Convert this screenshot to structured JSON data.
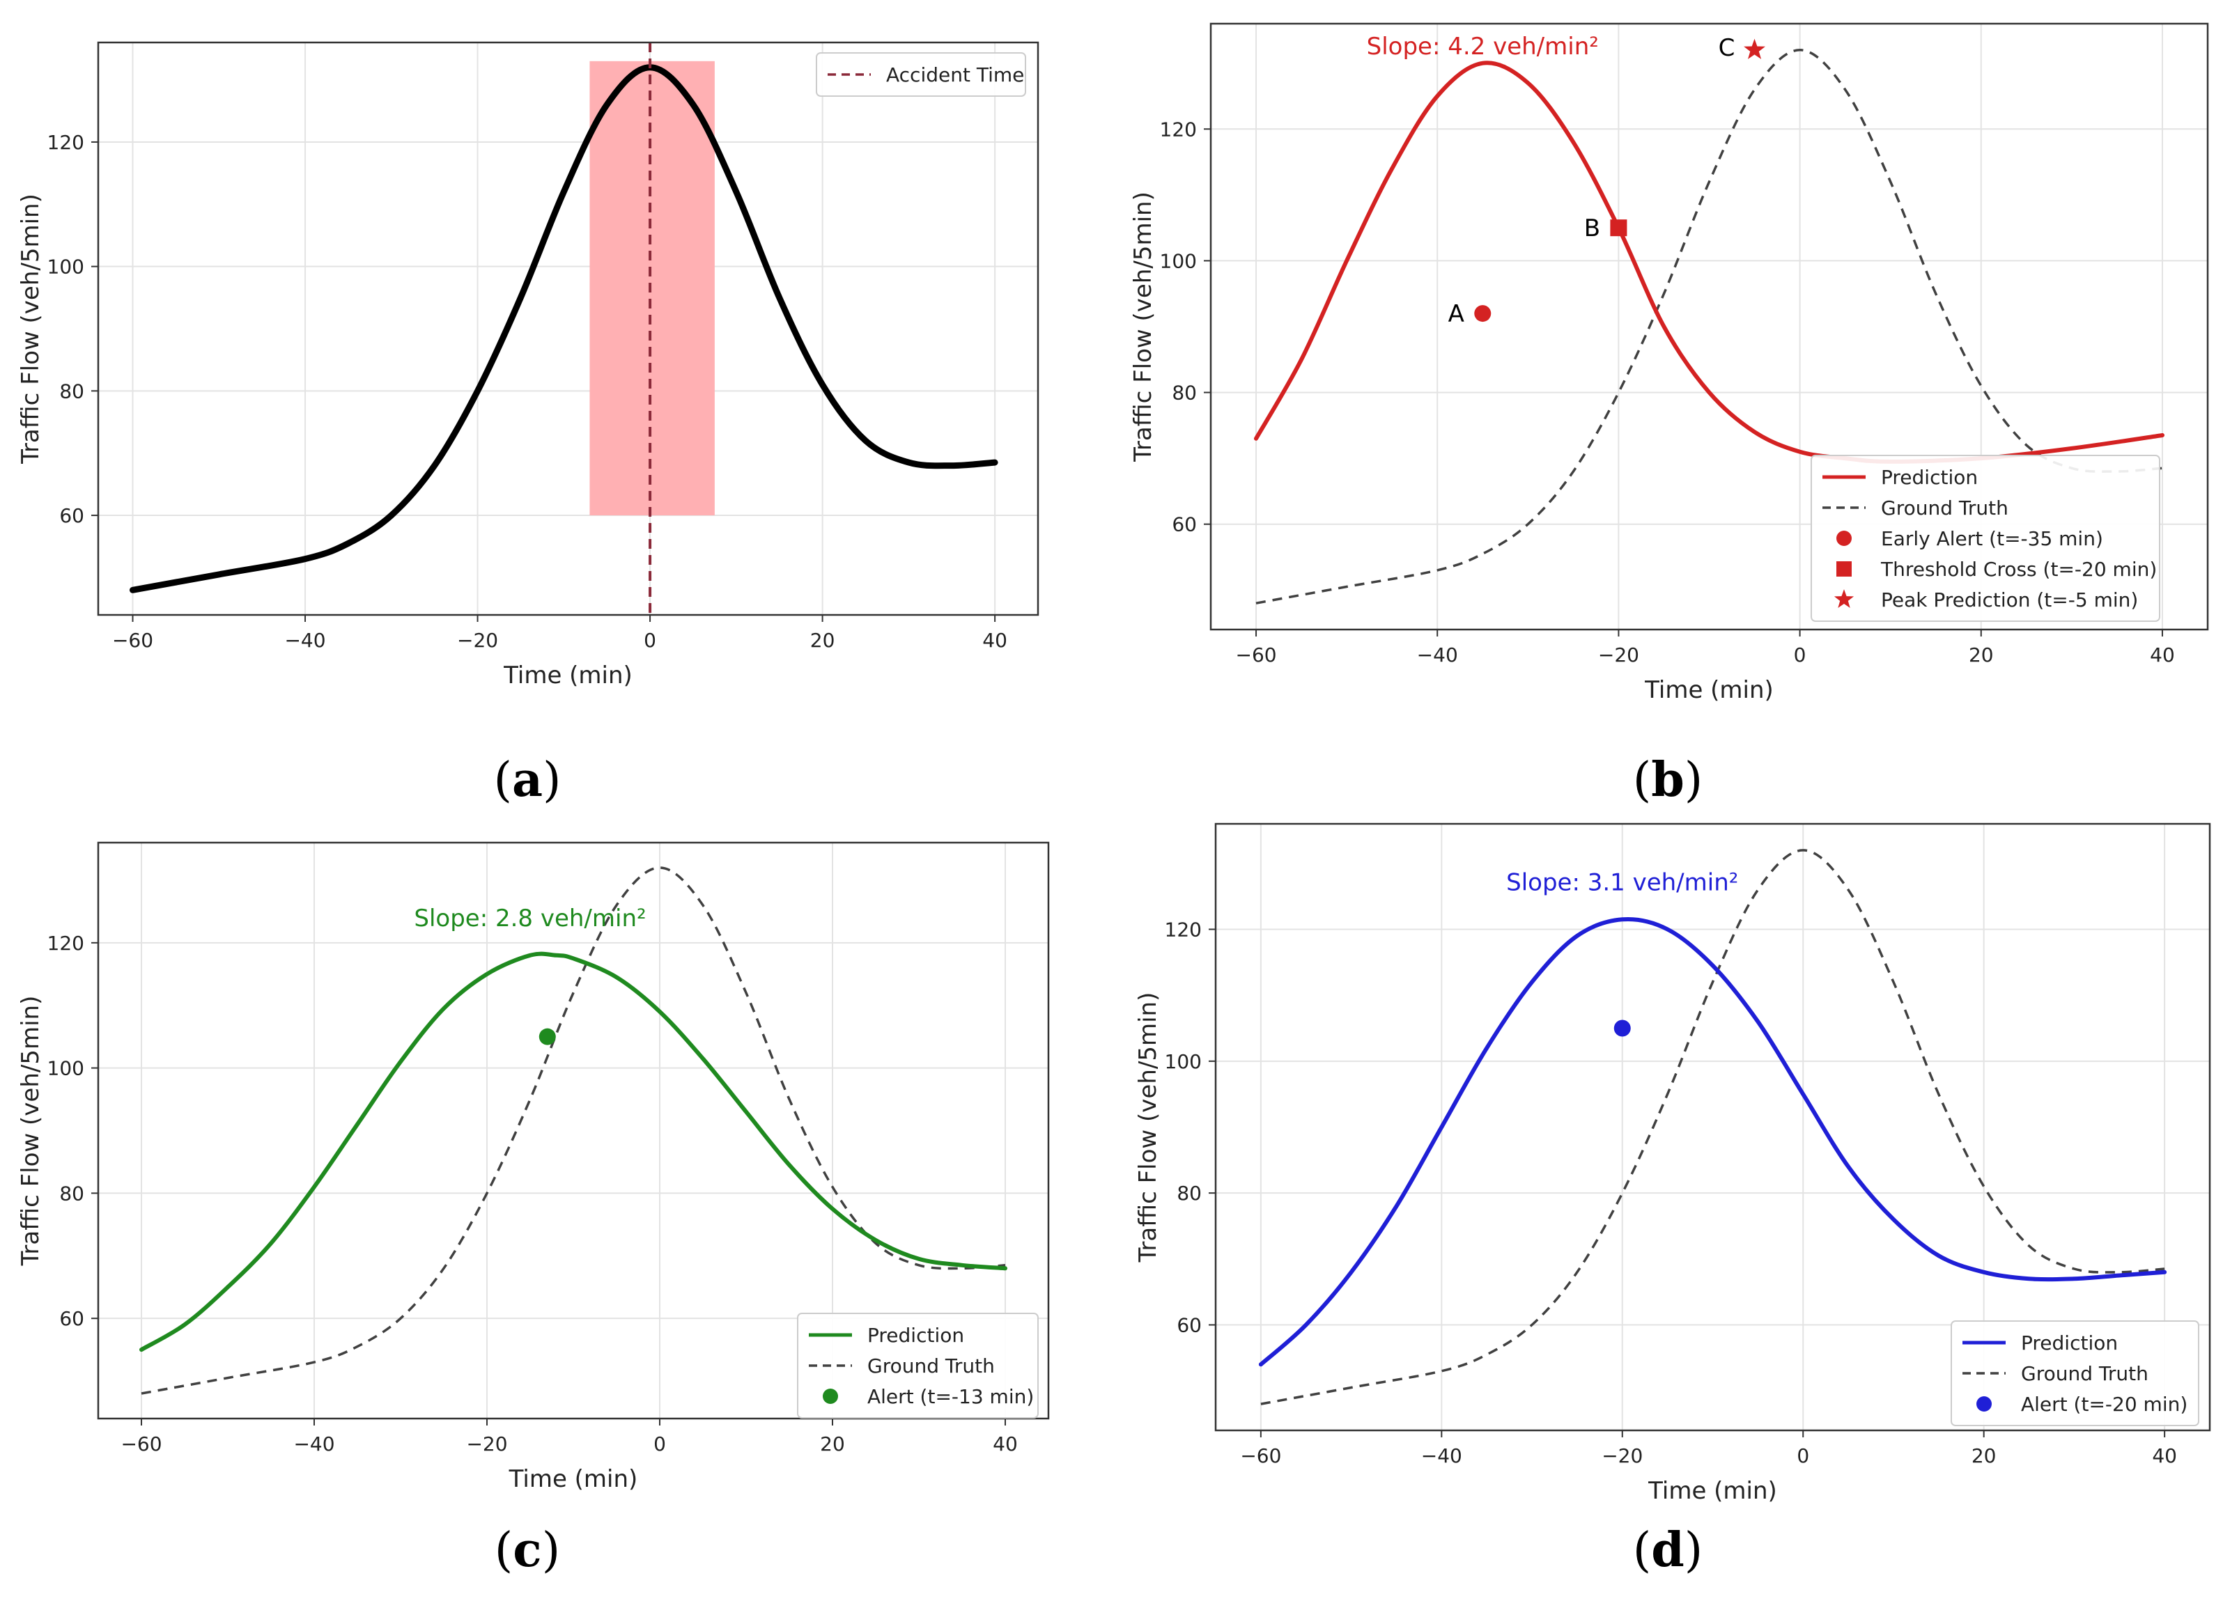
{
  "panel_labels": [
    "a",
    "b",
    "c",
    "d"
  ],
  "colors": {
    "black": "#000000",
    "red": "#d42222",
    "green": "#1f8a1f",
    "blue": "#1f1fd6",
    "gray_dashed": "#404040",
    "accident_line": "#8b2a3a",
    "shade": "#ffb0b3"
  },
  "chart_data": [
    {
      "panel": "a",
      "type": "line",
      "xlabel": "Time (min)",
      "ylabel": "Traffic Flow (veh/5min)",
      "xlim": [
        -64,
        45
      ],
      "ylim": [
        44,
        136
      ],
      "xticks": [
        -60,
        -40,
        -20,
        0,
        20,
        40
      ],
      "yticks": [
        60,
        80,
        100,
        120
      ],
      "grid": true,
      "legend_placement": "top-right",
      "series": [
        {
          "name": "",
          "color": "#000000",
          "style": "solid",
          "x": [
            -60,
            -50,
            -40,
            -35,
            -30,
            -25,
            -20,
            -15,
            -10,
            -5,
            0,
            5,
            10,
            15,
            20,
            25,
            30,
            35,
            40
          ],
          "y": [
            48,
            50.5,
            53,
            55.5,
            60,
            68,
            80,
            95,
            112,
            126,
            132,
            126,
            112,
            95,
            81,
            72,
            68.5,
            68,
            68.5
          ]
        }
      ],
      "shaded_region": {
        "x": [
          -7,
          7.5
        ],
        "y": [
          60,
          133
        ]
      },
      "vline": {
        "x": 0,
        "label": "Accident Time",
        "style": "dashed"
      }
    },
    {
      "panel": "b",
      "type": "line",
      "xlabel": "Time (min)",
      "ylabel": "Traffic Flow (veh/5min)",
      "xlim": [
        -65,
        45
      ],
      "ylim": [
        44,
        136
      ],
      "xticks": [
        -60,
        -40,
        -20,
        0,
        20,
        40
      ],
      "yticks": [
        60,
        80,
        100,
        120
      ],
      "grid": true,
      "legend_placement": "bottom-right",
      "annotation": "Slope: 4.2 veh/min²",
      "series": [
        {
          "name": "Prediction",
          "color": "#d42222",
          "style": "solid",
          "x": [
            -60,
            -55,
            -50,
            -45,
            -40,
            -35,
            -30,
            -25,
            -20,
            -15,
            -10,
            -5,
            0,
            5,
            10,
            20,
            30,
            40
          ],
          "y": [
            73,
            85,
            100,
            114,
            125,
            130,
            127,
            118,
            105,
            90,
            80,
            74,
            71,
            70,
            69.5,
            70,
            71.5,
            73.5
          ]
        },
        {
          "name": "Ground Truth",
          "color": "#404040",
          "style": "dashed",
          "x": [
            -60,
            -50,
            -40,
            -35,
            -30,
            -25,
            -20,
            -15,
            -10,
            -5,
            0,
            5,
            10,
            15,
            20,
            25,
            30,
            35,
            40
          ],
          "y": [
            48,
            50.5,
            53,
            55.5,
            60,
            68,
            80,
            95,
            112,
            126,
            132,
            126,
            112,
            95,
            81,
            72,
            68.5,
            68,
            68.5
          ]
        }
      ],
      "markers": [
        {
          "name": "Early Alert (t=-35 min)",
          "label": "A",
          "x": -35,
          "y": 92,
          "shape": "circle"
        },
        {
          "name": "Threshold Cross (t=-20 min)",
          "label": "B",
          "x": -20,
          "y": 105,
          "shape": "square"
        },
        {
          "name": "Peak Prediction (t=-5 min)",
          "label": "C",
          "x": -5,
          "y": 132,
          "shape": "star"
        }
      ]
    },
    {
      "panel": "c",
      "type": "line",
      "xlabel": "Time (min)",
      "ylabel": "Traffic Flow (veh/5min)",
      "xlim": [
        -65,
        45
      ],
      "ylim": [
        44,
        136
      ],
      "xticks": [
        -60,
        -40,
        -20,
        0,
        20,
        40
      ],
      "yticks": [
        60,
        80,
        100,
        120
      ],
      "grid": true,
      "legend_placement": "bottom-right",
      "annotation": "Slope: 2.8 veh/min²",
      "series": [
        {
          "name": "Prediction",
          "color": "#1f8a1f",
          "style": "solid",
          "x": [
            -60,
            -55,
            -50,
            -45,
            -40,
            -35,
            -30,
            -25,
            -20,
            -15,
            -12,
            -10,
            -5,
            0,
            5,
            10,
            15,
            20,
            25,
            30,
            35,
            40
          ],
          "y": [
            55,
            59,
            65,
            72,
            81,
            91,
            101,
            109.5,
            115,
            118,
            118,
            117.5,
            114.5,
            109,
            101.5,
            93,
            84.5,
            77.5,
            72.5,
            69.5,
            68.5,
            68
          ]
        },
        {
          "name": "Ground Truth",
          "color": "#404040",
          "style": "dashed",
          "x": [
            -60,
            -50,
            -40,
            -35,
            -30,
            -25,
            -20,
            -15,
            -10,
            -5,
            0,
            5,
            10,
            15,
            20,
            25,
            30,
            35,
            40
          ],
          "y": [
            48,
            50.5,
            53,
            55.5,
            60,
            68,
            80,
            95,
            112,
            126,
            132,
            126,
            112,
            95,
            81,
            72,
            68.5,
            68,
            68.5
          ]
        }
      ],
      "markers": [
        {
          "name": "Alert (t=-13 min)",
          "label": "",
          "x": -13,
          "y": 105,
          "shape": "circle"
        }
      ]
    },
    {
      "panel": "d",
      "type": "line",
      "xlabel": "Time (min)",
      "ylabel": "Traffic Flow (veh/5min)",
      "xlim": [
        -65,
        45
      ],
      "ylim": [
        44,
        136
      ],
      "xticks": [
        -60,
        -40,
        -20,
        0,
        20,
        40
      ],
      "yticks": [
        60,
        80,
        100,
        120
      ],
      "grid": true,
      "legend_placement": "bottom-right",
      "annotation": "Slope: 3.1 veh/min²",
      "series": [
        {
          "name": "Prediction",
          "color": "#1f1fd6",
          "style": "solid",
          "x": [
            -60,
            -55,
            -50,
            -45,
            -40,
            -35,
            -30,
            -25,
            -20,
            -15,
            -10,
            -5,
            0,
            5,
            10,
            15,
            20,
            25,
            30,
            35,
            40
          ],
          "y": [
            54,
            60,
            68,
            78,
            90,
            102,
            112,
            119,
            121.5,
            120,
            114.5,
            106,
            95,
            84,
            76,
            70.5,
            68,
            67,
            67,
            67.5,
            68
          ]
        },
        {
          "name": "Ground Truth",
          "color": "#404040",
          "style": "dashed",
          "x": [
            -60,
            -50,
            -40,
            -35,
            -30,
            -25,
            -20,
            -15,
            -10,
            -5,
            0,
            5,
            10,
            15,
            20,
            25,
            30,
            35,
            40
          ],
          "y": [
            48,
            50.5,
            53,
            55.5,
            60,
            68,
            80,
            95,
            112,
            126,
            132,
            126,
            112,
            95,
            81,
            72,
            68.5,
            68,
            68.5
          ]
        }
      ],
      "markers": [
        {
          "name": "Alert (t=-20 min)",
          "label": "",
          "x": -20,
          "y": 105,
          "shape": "circle"
        }
      ]
    }
  ]
}
